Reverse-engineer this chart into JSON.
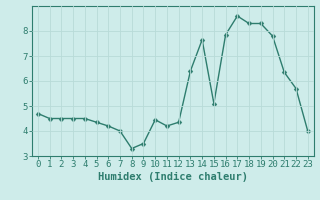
{
  "x": [
    0,
    1,
    2,
    3,
    4,
    5,
    6,
    7,
    8,
    9,
    10,
    11,
    12,
    13,
    14,
    15,
    16,
    17,
    18,
    19,
    20,
    21,
    22,
    23
  ],
  "y": [
    4.7,
    4.5,
    4.5,
    4.5,
    4.5,
    4.35,
    4.2,
    4.0,
    3.3,
    3.5,
    4.45,
    4.2,
    4.35,
    6.4,
    7.65,
    5.1,
    7.85,
    8.6,
    8.3,
    8.3,
    7.8,
    6.35,
    5.7,
    4.0
  ],
  "line_color": "#2e7d6e",
  "marker_color": "#2e7d6e",
  "bg_color": "#ceecea",
  "grid_color": "#b8dbd8",
  "xlabel": "Humidex (Indice chaleur)",
  "ylim": [
    3,
    9
  ],
  "xlim": [
    -0.5,
    23.5
  ],
  "yticks": [
    3,
    4,
    5,
    6,
    7,
    8
  ],
  "xticks": [
    0,
    1,
    2,
    3,
    4,
    5,
    6,
    7,
    8,
    9,
    10,
    11,
    12,
    13,
    14,
    15,
    16,
    17,
    18,
    19,
    20,
    21,
    22,
    23
  ],
  "tick_label_fontsize": 6.5,
  "xlabel_fontsize": 7.5,
  "linewidth": 1.0,
  "markersize": 2.5
}
